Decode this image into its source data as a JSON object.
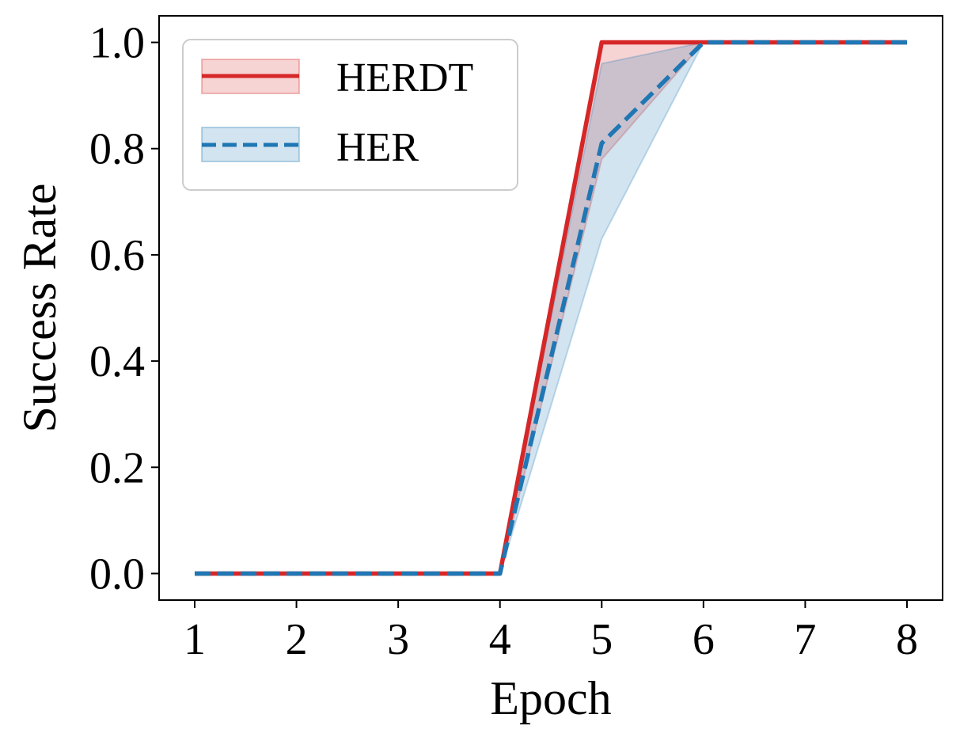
{
  "chart_data": {
    "type": "line",
    "xlabel": "Epoch",
    "ylabel": "Success Rate",
    "x": [
      1,
      2,
      3,
      4,
      5,
      6,
      7,
      8
    ],
    "xlim": [
      0.65,
      8.35
    ],
    "ylim": [
      -0.05,
      1.05
    ],
    "xticks": [
      "1",
      "2",
      "3",
      "4",
      "5",
      "6",
      "7",
      "8"
    ],
    "yticks": [
      "0.0",
      "0.2",
      "0.4",
      "0.6",
      "0.8",
      "1.0"
    ],
    "grid": false,
    "legend_position": "top-left",
    "series": [
      {
        "name": "HERDT",
        "color": "#d62728",
        "style": "solid",
        "values": [
          0,
          0,
          0,
          0,
          1.0,
          1.0,
          1.0,
          1.0
        ],
        "lower": [
          0,
          0,
          0,
          0,
          1.0,
          1.0,
          1.0,
          1.0
        ],
        "upper": [
          0,
          0,
          0,
          0,
          1.0,
          1.0,
          1.0,
          1.0
        ]
      },
      {
        "name": "HER",
        "color": "#1f77b4",
        "style": "dashed",
        "values": [
          0,
          0,
          0,
          0,
          0.81,
          1.0,
          1.0,
          1.0
        ],
        "lower": [
          0,
          0,
          0,
          0,
          0.63,
          1.0,
          1.0,
          1.0
        ],
        "upper": [
          0,
          0,
          0,
          0,
          0.96,
          1.0,
          1.0,
          1.0
        ]
      }
    ],
    "extra_bands": [
      {
        "series": "HERDT",
        "lower": [
          0,
          0,
          0,
          0,
          0.78,
          1.0,
          1.0,
          1.0
        ],
        "upper": [
          0,
          0,
          0,
          0,
          1.0,
          1.0,
          1.0,
          1.0
        ]
      }
    ]
  }
}
